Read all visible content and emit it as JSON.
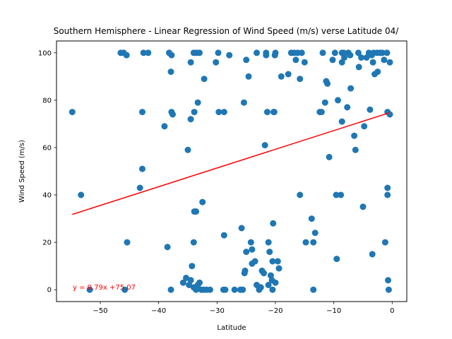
{
  "chart_data": {
    "type": "scatter",
    "title": "Southern Hemisphere - Linear Regression of Wind Speed (m/s) verse Latitude 04/",
    "xlabel": "Latitude",
    "ylabel": "Wind Speed (m/s)",
    "xlim": [
      -57.5,
      2.5
    ],
    "ylim": [
      -5,
      105
    ],
    "x_ticks": [
      -50,
      -40,
      -30,
      -20,
      -10,
      0
    ],
    "y_ticks": [
      0,
      20,
      40,
      60,
      80,
      100
    ],
    "x_tick_labels": [
      "−50",
      "−40",
      "−30",
      "−20",
      "−10",
      "0"
    ],
    "y_tick_labels": [
      "0",
      "20",
      "40",
      "60",
      "80",
      "100"
    ],
    "grid": false,
    "point_color": "#1f77b4",
    "regression": {
      "slope": 0.79,
      "intercept": 75.07,
      "x_range": [
        -54.8,
        -0.5
      ],
      "color": "#ff0000",
      "equation_label": "y = 0.79x +75.07"
    },
    "points": [
      [
        -54.8,
        75
      ],
      [
        -53.3,
        40
      ],
      [
        -51.8,
        0
      ],
      [
        -46.5,
        100
      ],
      [
        -46.0,
        100
      ],
      [
        -45.5,
        99
      ],
      [
        -45.8,
        0
      ],
      [
        -45.4,
        20
      ],
      [
        -43.2,
        43
      ],
      [
        -42.8,
        75
      ],
      [
        -42.8,
        51
      ],
      [
        -42.6,
        100
      ],
      [
        -41.8,
        100
      ],
      [
        -39.0,
        69
      ],
      [
        -38.5,
        18
      ],
      [
        -38.2,
        100
      ],
      [
        -37.8,
        99
      ],
      [
        -37.9,
        92
      ],
      [
        -37.8,
        75
      ],
      [
        -37.6,
        74
      ],
      [
        -37.9,
        0
      ],
      [
        -35.0,
        59
      ],
      [
        -34.5,
        72
      ],
      [
        -34.5,
        96
      ],
      [
        -33.9,
        75
      ],
      [
        -34.0,
        100
      ],
      [
        -33.5,
        100
      ],
      [
        -33.0,
        100
      ],
      [
        -33.3,
        79
      ],
      [
        -33.9,
        33
      ],
      [
        -33.6,
        33
      ],
      [
        -34.0,
        20
      ],
      [
        -32.5,
        37
      ],
      [
        -32.2,
        89
      ],
      [
        -35.8,
        3
      ],
      [
        -35.3,
        5
      ],
      [
        -34.8,
        2
      ],
      [
        -34.5,
        4
      ],
      [
        -34.3,
        10
      ],
      [
        -34.0,
        1
      ],
      [
        -33.6,
        0
      ],
      [
        -33.3,
        2
      ],
      [
        -33.0,
        3
      ],
      [
        -32.7,
        0
      ],
      [
        -32.3,
        0
      ],
      [
        -31.8,
        0
      ],
      [
        -31.2,
        0
      ],
      [
        -30.2,
        96
      ],
      [
        -29.8,
        100
      ],
      [
        -29.7,
        75
      ],
      [
        -28.8,
        75
      ],
      [
        -28.8,
        23
      ],
      [
        -28.9,
        0
      ],
      [
        -28.6,
        0
      ],
      [
        -27.9,
        99
      ],
      [
        -27.0,
        0
      ],
      [
        -26.0,
        0
      ],
      [
        -25.6,
        0
      ],
      [
        -25.8,
        26
      ],
      [
        -25.3,
        7
      ],
      [
        -25.2,
        8
      ],
      [
        -25.0,
        16
      ],
      [
        -25.0,
        97
      ],
      [
        -24.6,
        90
      ],
      [
        -25.4,
        79
      ],
      [
        -24.2,
        20
      ],
      [
        -24.0,
        17
      ],
      [
        -24.0,
        11
      ],
      [
        -23.5,
        12
      ],
      [
        -23.2,
        100
      ],
      [
        -23.2,
        2
      ],
      [
        -22.8,
        0
      ],
      [
        -22.5,
        1
      ],
      [
        -22.3,
        8
      ],
      [
        -22.0,
        7
      ],
      [
        -21.8,
        61
      ],
      [
        -21.6,
        100
      ],
      [
        -21.6,
        99
      ],
      [
        -21.4,
        75
      ],
      [
        -21.2,
        20
      ],
      [
        -21.0,
        16
      ],
      [
        -21.2,
        2
      ],
      [
        -20.8,
        6
      ],
      [
        -20.6,
        4
      ],
      [
        -20.5,
        12
      ],
      [
        -20.3,
        75
      ],
      [
        -20.2,
        75
      ],
      [
        -20.4,
        28
      ],
      [
        -20.1,
        99
      ],
      [
        -20.0,
        100
      ],
      [
        -20.5,
        0
      ],
      [
        -20.0,
        3
      ],
      [
        -19.6,
        12
      ],
      [
        -19.4,
        9
      ],
      [
        -19.0,
        90
      ],
      [
        -17.8,
        91
      ],
      [
        -17.3,
        100
      ],
      [
        -16.8,
        100
      ],
      [
        -16.5,
        97
      ],
      [
        -16.2,
        100
      ],
      [
        -15.8,
        89
      ],
      [
        -15.5,
        100
      ],
      [
        -15.8,
        40
      ],
      [
        -15.0,
        96
      ],
      [
        -14.8,
        20
      ],
      [
        -13.8,
        30
      ],
      [
        -13.5,
        20
      ],
      [
        -13.2,
        24
      ],
      [
        -13.5,
        0
      ],
      [
        -12.4,
        75
      ],
      [
        -12.1,
        75
      ],
      [
        -11.9,
        100
      ],
      [
        -11.5,
        79
      ],
      [
        -11.3,
        88
      ],
      [
        -11.1,
        87
      ],
      [
        -10.8,
        56
      ],
      [
        -10.2,
        97
      ],
      [
        -9.8,
        100
      ],
      [
        -9.6,
        40
      ],
      [
        -9.5,
        13
      ],
      [
        -9.3,
        80
      ],
      [
        -8.8,
        40
      ],
      [
        -8.6,
        100
      ],
      [
        -8.6,
        96
      ],
      [
        -8.6,
        71
      ],
      [
        -8.3,
        100
      ],
      [
        -8.2,
        98
      ],
      [
        -7.7,
        77
      ],
      [
        -7.5,
        100
      ],
      [
        -7.2,
        99
      ],
      [
        -7.1,
        85
      ],
      [
        -6.5,
        65
      ],
      [
        -6.3,
        59
      ],
      [
        -5.8,
        100
      ],
      [
        -5.7,
        94
      ],
      [
        -5.3,
        98
      ],
      [
        -5.0,
        35
      ],
      [
        -4.8,
        69
      ],
      [
        -4.4,
        98
      ],
      [
        -4.0,
        100
      ],
      [
        -3.8,
        76
      ],
      [
        -3.5,
        99
      ],
      [
        -3.4,
        15
      ],
      [
        -3.3,
        96
      ],
      [
        -3.2,
        100
      ],
      [
        -3.0,
        91
      ],
      [
        -2.6,
        100
      ],
      [
        -2.5,
        92
      ],
      [
        -2.1,
        100
      ],
      [
        -1.7,
        100
      ],
      [
        -1.4,
        97
      ],
      [
        -1.2,
        20
      ],
      [
        -0.9,
        100
      ],
      [
        -0.8,
        43
      ],
      [
        -0.8,
        75
      ],
      [
        -0.8,
        40
      ],
      [
        -0.7,
        4
      ],
      [
        -0.6,
        0
      ],
      [
        -0.4,
        74
      ],
      [
        -0.4,
        96
      ]
    ]
  }
}
